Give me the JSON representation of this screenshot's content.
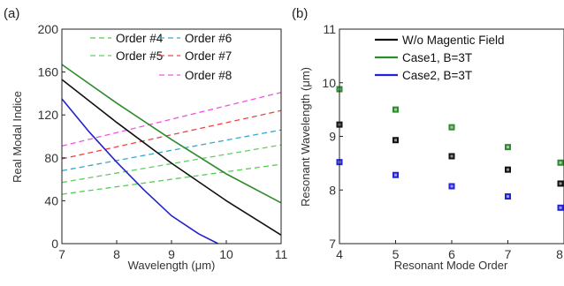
{
  "chart_data": [
    {
      "panel_label": "(a)",
      "type": "line",
      "xlabel": "Wavelength (μm)",
      "ylabel": "Real Modal Indice",
      "xlim": [
        7,
        11
      ],
      "ylim": [
        0,
        200
      ],
      "xticks": [
        "7",
        "8",
        "9",
        "10",
        "11"
      ],
      "yticks": [
        "0",
        "40",
        "80",
        "120",
        "160",
        "200"
      ],
      "grid": false,
      "legend": {
        "placement": "top-right",
        "columns": 2,
        "entries": [
          "Order #4",
          "Order #6",
          "Order #5",
          "Order #7",
          "Order #8"
        ]
      },
      "series": [
        {
          "name": "Order #4",
          "color": "#55cc55",
          "dash": "dashed",
          "x": [
            7,
            11
          ],
          "y": [
            46,
            74
          ]
        },
        {
          "name": "Order #5",
          "color": "#66cc66",
          "dash": "dashed",
          "x": [
            7,
            11
          ],
          "y": [
            57,
            92
          ]
        },
        {
          "name": "Order #6",
          "color": "#33aacc",
          "dash": "dashed",
          "x": [
            7,
            11
          ],
          "y": [
            68,
            106
          ]
        },
        {
          "name": "Order #7",
          "color": "#ee4444",
          "dash": "dashed",
          "x": [
            7,
            11
          ],
          "y": [
            79,
            124
          ]
        },
        {
          "name": "Order #8",
          "color": "#ee55dd",
          "dash": "dashed",
          "x": [
            7,
            11
          ],
          "y": [
            91,
            141
          ]
        },
        {
          "color": "#2e8b2e",
          "dash": "solid",
          "x": [
            7,
            8,
            9,
            10,
            11
          ],
          "y": [
            167,
            131,
            97,
            65,
            38
          ]
        },
        {
          "color": "#111111",
          "dash": "solid",
          "x": [
            7,
            8,
            9,
            10,
            11
          ],
          "y": [
            153,
            113,
            75,
            40,
            8
          ]
        },
        {
          "color": "#2222cc",
          "dash": "solid",
          "x": [
            7,
            7.5,
            8,
            8.5,
            9,
            9.5,
            9.85
          ],
          "y": [
            135,
            104,
            76,
            50,
            26,
            9,
            0
          ]
        }
      ]
    },
    {
      "panel_label": "(b)",
      "type": "scatter",
      "xlabel": "Resonant Mode Order",
      "ylabel": "Resonant Wavelength (μm)",
      "xlim": [
        4,
        8
      ],
      "ylim": [
        7,
        11
      ],
      "xticks": [
        "4",
        "5",
        "6",
        "7",
        "8"
      ],
      "yticks": [
        "7",
        "8",
        "9",
        "10",
        "11"
      ],
      "grid": false,
      "legend": {
        "placement": "top-right"
      },
      "series": [
        {
          "name": "W/o Magentic Field",
          "color": "#111111",
          "x": [
            4,
            5,
            6,
            7,
            8
          ],
          "y": [
            9.22,
            8.93,
            8.63,
            8.38,
            8.12
          ]
        },
        {
          "name": "Case1, B=3T",
          "color": "#2e8b2e",
          "x": [
            4,
            5,
            6,
            7,
            8
          ],
          "y": [
            9.88,
            9.5,
            9.17,
            8.8,
            8.51
          ]
        },
        {
          "name": "Case2, B=3T",
          "color": "#2222dd",
          "x": [
            4,
            5,
            6,
            7,
            8
          ],
          "y": [
            8.52,
            8.28,
            8.07,
            7.88,
            7.67
          ]
        }
      ]
    }
  ]
}
